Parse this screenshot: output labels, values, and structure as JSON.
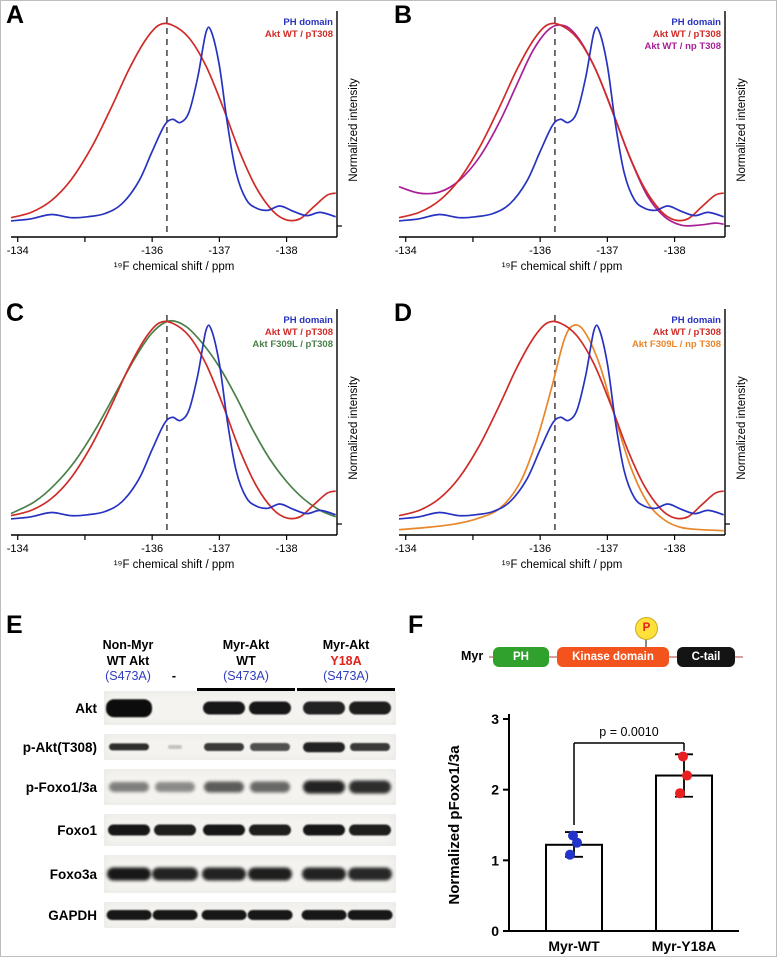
{
  "nmr": {
    "xlabel": "¹⁹F chemical shift / ppm",
    "ylabel": "Normalized intensity",
    "x_start": -133.9,
    "x_end": -138.75,
    "dashed_x": -136.22,
    "ticks": [
      {
        "v": -134,
        "label": "-134"
      },
      {
        "v": -135,
        "label": ""
      },
      {
        "v": -136,
        "label": "-136"
      },
      {
        "v": -137,
        "label": "-137"
      },
      {
        "v": -138,
        "label": "-138"
      }
    ],
    "curves": {
      "ph": {
        "label": "PH domain",
        "color": "#2733c0",
        "points": [
          [
            -133.9,
            0.075
          ],
          [
            -134.2,
            0.085
          ],
          [
            -134.5,
            0.105
          ],
          [
            -134.8,
            0.09
          ],
          [
            -135.05,
            0.095
          ],
          [
            -135.3,
            0.11
          ],
          [
            -135.55,
            0.155
          ],
          [
            -135.8,
            0.26
          ],
          [
            -136.0,
            0.4
          ],
          [
            -136.18,
            0.52
          ],
          [
            -136.3,
            0.55
          ],
          [
            -136.42,
            0.535
          ],
          [
            -136.55,
            0.585
          ],
          [
            -136.68,
            0.75
          ],
          [
            -136.8,
            0.955
          ],
          [
            -136.88,
            0.96
          ],
          [
            -137.0,
            0.8
          ],
          [
            -137.12,
            0.53
          ],
          [
            -137.25,
            0.3
          ],
          [
            -137.4,
            0.175
          ],
          [
            -137.55,
            0.135
          ],
          [
            -137.72,
            0.125
          ],
          [
            -137.9,
            0.145
          ],
          [
            -138.1,
            0.12
          ],
          [
            -138.3,
            0.1
          ],
          [
            -138.5,
            0.115
          ],
          [
            -138.73,
            0.095
          ]
        ]
      },
      "wt_p": {
        "label": "Akt WT / pT308",
        "color": "#cf2b27",
        "points": [
          [
            -133.9,
            0.09
          ],
          [
            -134.2,
            0.115
          ],
          [
            -134.5,
            0.17
          ],
          [
            -134.8,
            0.27
          ],
          [
            -135.1,
            0.42
          ],
          [
            -135.4,
            0.61
          ],
          [
            -135.65,
            0.78
          ],
          [
            -135.9,
            0.92
          ],
          [
            -136.1,
            0.99
          ],
          [
            -136.3,
            0.99
          ],
          [
            -136.55,
            0.93
          ],
          [
            -136.8,
            0.8
          ],
          [
            -137.05,
            0.61
          ],
          [
            -137.3,
            0.4
          ],
          [
            -137.55,
            0.23
          ],
          [
            -137.8,
            0.12
          ],
          [
            -138.0,
            0.08
          ],
          [
            -138.2,
            0.085
          ],
          [
            -138.4,
            0.14
          ],
          [
            -138.6,
            0.195
          ],
          [
            -138.73,
            0.205
          ]
        ]
      },
      "wt_np": {
        "label": "Akt WT / np T308",
        "color": "#a91f96",
        "points": [
          [
            -133.9,
            0.235
          ],
          [
            -134.2,
            0.205
          ],
          [
            -134.5,
            0.21
          ],
          [
            -134.8,
            0.265
          ],
          [
            -135.1,
            0.375
          ],
          [
            -135.4,
            0.54
          ],
          [
            -135.65,
            0.71
          ],
          [
            -135.9,
            0.875
          ],
          [
            -136.15,
            0.975
          ],
          [
            -136.38,
            0.985
          ],
          [
            -136.6,
            0.915
          ],
          [
            -136.85,
            0.765
          ],
          [
            -137.1,
            0.565
          ],
          [
            -137.35,
            0.36
          ],
          [
            -137.6,
            0.19
          ],
          [
            -137.85,
            0.095
          ],
          [
            -138.1,
            0.055
          ],
          [
            -138.35,
            0.055
          ],
          [
            -138.6,
            0.065
          ],
          [
            -138.73,
            0.06
          ]
        ]
      },
      "f309l_p": {
        "label": "Akt F309L / pT308",
        "color": "#4a8049",
        "points": [
          [
            -133.9,
            0.1
          ],
          [
            -134.25,
            0.155
          ],
          [
            -134.55,
            0.235
          ],
          [
            -134.85,
            0.345
          ],
          [
            -135.15,
            0.49
          ],
          [
            -135.45,
            0.66
          ],
          [
            -135.75,
            0.83
          ],
          [
            -136.0,
            0.945
          ],
          [
            -136.25,
            1.0
          ],
          [
            -136.5,
            0.975
          ],
          [
            -136.75,
            0.895
          ],
          [
            -137.0,
            0.785
          ],
          [
            -137.25,
            0.645
          ],
          [
            -137.5,
            0.49
          ],
          [
            -137.75,
            0.355
          ],
          [
            -138.0,
            0.25
          ],
          [
            -138.25,
            0.17
          ],
          [
            -138.5,
            0.115
          ],
          [
            -138.73,
            0.085
          ]
        ]
      },
      "f309l_np": {
        "label": "Akt F309L / np T308",
        "color": "#e8862b",
        "points": [
          [
            -133.9,
            0.025
          ],
          [
            -134.3,
            0.035
          ],
          [
            -134.7,
            0.05
          ],
          [
            -135.05,
            0.075
          ],
          [
            -135.4,
            0.125
          ],
          [
            -135.7,
            0.245
          ],
          [
            -135.95,
            0.445
          ],
          [
            -136.18,
            0.7
          ],
          [
            -136.36,
            0.915
          ],
          [
            -136.5,
            0.98
          ],
          [
            -136.66,
            0.95
          ],
          [
            -136.88,
            0.8
          ],
          [
            -137.1,
            0.565
          ],
          [
            -137.35,
            0.315
          ],
          [
            -137.6,
            0.15
          ],
          [
            -137.85,
            0.07
          ],
          [
            -138.1,
            0.035
          ],
          [
            -138.4,
            0.025
          ],
          [
            -138.73,
            0.02
          ]
        ]
      }
    },
    "panels": [
      {
        "letter": "A",
        "curves": [
          "ph",
          "wt_p"
        ]
      },
      {
        "letter": "B",
        "curves": [
          "ph",
          "wt_p",
          "wt_np"
        ]
      },
      {
        "letter": "C",
        "curves": [
          "ph",
          "wt_p",
          "f309l_p"
        ]
      },
      {
        "letter": "D",
        "curves": [
          "ph",
          "wt_p",
          "f309l_np"
        ]
      }
    ]
  },
  "blot_panel": {
    "letter": "E",
    "lane_centers": [
      25,
      71,
      120,
      166,
      220,
      266
    ],
    "band_width": 40,
    "header_groups": [
      {
        "lines": [
          {
            "text": "Non-Myr",
            "bold": true,
            "color": "#000000"
          },
          {
            "text": "WT Akt",
            "bold": true,
            "color": "#000000"
          },
          {
            "text": "(S473A)",
            "bold": false,
            "color": "#2f3dc0"
          }
        ],
        "lanes": [
          0
        ],
        "underline": false
      },
      {
        "lines": [
          {
            "text": "-",
            "bold": true,
            "color": "#000000"
          }
        ],
        "lanes": [
          1
        ],
        "underline": false
      },
      {
        "lines": [
          {
            "text": "Myr-Akt",
            "bold": true,
            "color": "#000000"
          },
          {
            "text": "WT",
            "bold": true,
            "color": "#000000"
          },
          {
            "text": "(S473A)",
            "bold": false,
            "color": "#2f3dc0"
          }
        ],
        "lanes": [
          2,
          3
        ],
        "underline": true
      },
      {
        "lines": [
          {
            "text": "Myr-Akt",
            "bold": true,
            "color": "#000000"
          },
          {
            "text": "Y18A",
            "bold": true,
            "color": "#e2201c"
          },
          {
            "text": "(S473A)",
            "bold": false,
            "color": "#2f3dc0"
          }
        ],
        "lanes": [
          4,
          5
        ],
        "underline": true
      }
    ],
    "rows": [
      {
        "label": "Akt",
        "strip_h": 34,
        "band_h": 13,
        "blur": 0.8,
        "bands": [
          1,
          0,
          0.95,
          0.95,
          0.9,
          0.92
        ],
        "h_scale": [
          1.35,
          0,
          1,
          1,
          1,
          1
        ],
        "w_scale": [
          1.15,
          0,
          1.05,
          1.05,
          1.05,
          1.05
        ]
      },
      {
        "label": "p-Akt(T308)",
        "strip_h": 26,
        "band_h": 8,
        "blur": 0.8,
        "bands": [
          0.85,
          0.2,
          0.8,
          0.7,
          0.9,
          0.8
        ],
        "h_scale": [
          0.9,
          0.5,
          1,
          1,
          1.2,
          1
        ],
        "w_scale": [
          1,
          0.35,
          1,
          1,
          1.05,
          1
        ]
      },
      {
        "label": "p-Foxo1/3a",
        "strip_h": 36,
        "band_h": 10,
        "blur": 1.6,
        "bands": [
          0.5,
          0.45,
          0.65,
          0.6,
          0.9,
          0.85
        ],
        "h_scale": [
          1,
          1,
          1.1,
          1.1,
          1.3,
          1.3
        ],
        "w_scale": [
          1,
          1,
          1,
          1,
          1.05,
          1.05
        ]
      },
      {
        "label": "Foxo1",
        "strip_h": 32,
        "band_h": 11,
        "blur": 0.9,
        "bands": [
          0.95,
          0.92,
          0.95,
          0.92,
          0.95,
          0.92
        ],
        "w_scale": [
          1.05,
          1.05,
          1.05,
          1.05,
          1.05,
          1.05
        ]
      },
      {
        "label": "Foxo3a",
        "strip_h": 38,
        "band_h": 13,
        "blur": 1.5,
        "bands": [
          0.95,
          0.9,
          0.9,
          0.92,
          0.9,
          0.88
        ],
        "w_scale": [
          1.1,
          1.15,
          1.1,
          1.1,
          1.1,
          1.1
        ]
      },
      {
        "label": "GAPDH",
        "strip_h": 26,
        "band_h": 10,
        "blur": 0.8,
        "bands": [
          0.95,
          0.95,
          0.95,
          0.95,
          0.95,
          0.95
        ],
        "w_scale": [
          1.12,
          1.12,
          1.12,
          1.12,
          1.12,
          1.12
        ]
      }
    ]
  },
  "f_panel": {
    "letter": "F",
    "schematic": {
      "myr": "Myr",
      "ph": "PH",
      "kinase": "Kinase domain",
      "ctail": "C-tail",
      "p": "P",
      "colors": {
        "ph": "#2fa12c",
        "kinase": "#f3531d",
        "ctail": "#141414",
        "p_bg": "#ffe13a",
        "p_text": "#e02020"
      }
    },
    "chart": {
      "type": "bar",
      "ylabel": "Normalized pFoxo1/3a",
      "ylim": [
        0,
        3
      ],
      "yticks": [
        0,
        1,
        2,
        3
      ],
      "categories": [
        "Myr-WT",
        "Myr-Y18A"
      ],
      "values": [
        1.22,
        2.2
      ],
      "error_low": [
        1.05,
        1.9
      ],
      "error_high": [
        1.4,
        2.5
      ],
      "points": [
        [
          1.08,
          1.25,
          1.35
        ],
        [
          1.95,
          2.2,
          2.47
        ]
      ],
      "point_colors": [
        "#2135c8",
        "#ea1f1f"
      ],
      "p_label": "p = 0.0010",
      "bracket": {
        "y": 2.66,
        "left_drop_to": 1.5,
        "right_drop_to": 2.55
      }
    }
  }
}
